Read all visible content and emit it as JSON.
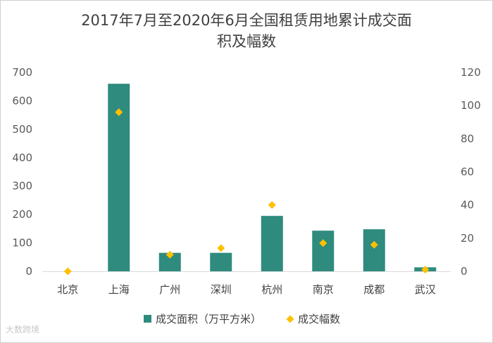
{
  "chart_data": {
    "type": "bar",
    "title_line1": "2017年7月至2020年6月全国租赁用地累计成交面",
    "title_line2": "积及幅数",
    "categories": [
      "北京",
      "上海",
      "广州",
      "深圳",
      "杭州",
      "南京",
      "成都",
      "武汉"
    ],
    "series": [
      {
        "name": "成交面积（万平方米）",
        "type": "bar",
        "axis": "left",
        "color": "#2e8b7e",
        "values": [
          0,
          660,
          65,
          65,
          195,
          143,
          148,
          14
        ]
      },
      {
        "name": "成交幅数",
        "type": "scatter",
        "axis": "right",
        "color": "#ffc000",
        "marker": "diamond",
        "values": [
          0,
          96,
          10,
          14,
          40,
          17,
          16,
          1
        ]
      }
    ],
    "left_axis": {
      "ylim": [
        0,
        700
      ],
      "ticks": [
        0,
        100,
        200,
        300,
        400,
        500,
        600,
        700
      ]
    },
    "right_axis": {
      "ylim": [
        0,
        120
      ],
      "ticks": [
        0,
        20,
        40,
        60,
        80,
        100,
        120
      ]
    },
    "grid": false,
    "legend_position": "bottom"
  },
  "watermark": "大数跨境"
}
